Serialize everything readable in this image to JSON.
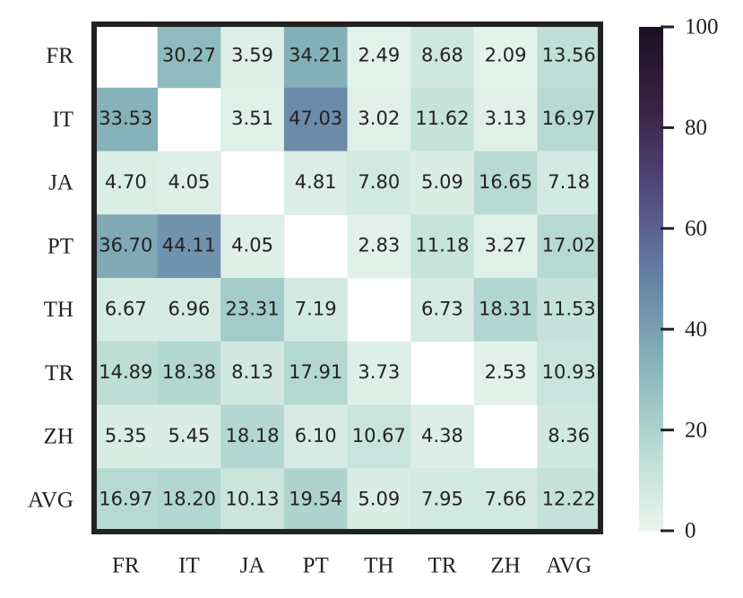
{
  "chart_data": {
    "type": "heatmap",
    "rows": [
      "FR",
      "IT",
      "JA",
      "PT",
      "TH",
      "TR",
      "ZH",
      "AVG"
    ],
    "columns": [
      "FR",
      "IT",
      "JA",
      "PT",
      "TH",
      "TR",
      "ZH",
      "AVG"
    ],
    "values": [
      [
        null,
        30.27,
        3.59,
        34.21,
        2.49,
        8.68,
        2.09,
        13.56
      ],
      [
        33.53,
        null,
        3.51,
        47.03,
        3.02,
        11.62,
        3.13,
        16.97
      ],
      [
        4.7,
        4.05,
        null,
        4.81,
        7.8,
        5.09,
        16.65,
        7.18
      ],
      [
        36.7,
        44.11,
        4.05,
        null,
        2.83,
        11.18,
        3.27,
        17.02
      ],
      [
        6.67,
        6.96,
        23.31,
        7.19,
        null,
        6.73,
        18.31,
        11.53
      ],
      [
        14.89,
        18.38,
        8.13,
        17.91,
        3.73,
        null,
        2.53,
        10.93
      ],
      [
        5.35,
        5.45,
        18.18,
        6.1,
        10.67,
        4.38,
        null,
        8.36
      ],
      [
        16.97,
        18.2,
        10.13,
        19.54,
        5.09,
        7.95,
        7.66,
        12.22
      ]
    ],
    "value_labels": [
      [
        null,
        "30.27",
        "3.59",
        "34.21",
        "2.49",
        "8.68",
        "2.09",
        "13.56"
      ],
      [
        "33.53",
        null,
        "3.51",
        "47.03",
        "3.02",
        "11.62",
        "3.13",
        "16.97"
      ],
      [
        "4.70",
        "4.05",
        null,
        "4.81",
        "7.80",
        "5.09",
        "16.65",
        "7.18"
      ],
      [
        "36.70",
        "44.11",
        "4.05",
        null,
        "2.83",
        "11.18",
        "3.27",
        "17.02"
      ],
      [
        "6.67",
        "6.96",
        "23.31",
        "7.19",
        null,
        "6.73",
        "18.31",
        "11.53"
      ],
      [
        "14.89",
        "18.38",
        "8.13",
        "17.91",
        "3.73",
        null,
        "2.53",
        "10.93"
      ],
      [
        "5.35",
        "5.45",
        "18.18",
        "6.10",
        "10.67",
        "4.38",
        null,
        "8.36"
      ],
      [
        "16.97",
        "18.20",
        "10.13",
        "19.54",
        "5.09",
        "7.95",
        "7.66",
        "12.22"
      ]
    ],
    "zlim": [
      0,
      100
    ],
    "zticks": [
      0,
      20,
      40,
      60,
      80,
      100
    ],
    "colormap": [
      "#e9f5ee",
      "#b7dbd2",
      "#86b3b9",
      "#6582a6",
      "#534c80",
      "#3b2347",
      "#1c0e20"
    ]
  }
}
